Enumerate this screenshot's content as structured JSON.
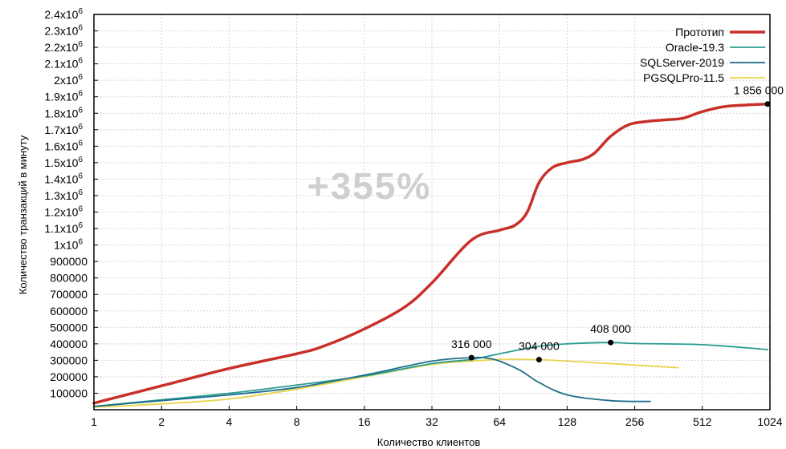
{
  "chart_data": {
    "type": "line",
    "title": "",
    "watermark": "+355%",
    "xlabel": "Количество клиентов",
    "ylabel": "Количество транзакций в минуту",
    "x_scale": "log2",
    "xlim": [
      1,
      1024
    ],
    "ylim": [
      0,
      2400000
    ],
    "grid": true,
    "legend_placement": "top-right",
    "x_ticks": [
      {
        "value": 1,
        "label": "1"
      },
      {
        "value": 2,
        "label": "2"
      },
      {
        "value": 4,
        "label": "4"
      },
      {
        "value": 8,
        "label": "8"
      },
      {
        "value": 16,
        "label": "16"
      },
      {
        "value": 32,
        "label": "32"
      },
      {
        "value": 64,
        "label": "64"
      },
      {
        "value": 128,
        "label": "128"
      },
      {
        "value": 256,
        "label": "256"
      },
      {
        "value": 512,
        "label": "512"
      },
      {
        "value": 1024,
        "label": "1024"
      }
    ],
    "y_ticks": [
      {
        "value": 100000,
        "label": "100000"
      },
      {
        "value": 200000,
        "label": "200000"
      },
      {
        "value": 300000,
        "label": "300000"
      },
      {
        "value": 400000,
        "label": "400000"
      },
      {
        "value": 500000,
        "label": "500000"
      },
      {
        "value": 600000,
        "label": "600000"
      },
      {
        "value": 700000,
        "label": "700000"
      },
      {
        "value": 800000,
        "label": "800000"
      },
      {
        "value": 900000,
        "label": "900000"
      },
      {
        "value": 1000000,
        "label": "1x10",
        "exp": "6"
      },
      {
        "value": 1100000,
        "label": "1.1x10",
        "exp": "6"
      },
      {
        "value": 1200000,
        "label": "1.2x10",
        "exp": "6"
      },
      {
        "value": 1300000,
        "label": "1.3x10",
        "exp": "6"
      },
      {
        "value": 1400000,
        "label": "1.4x10",
        "exp": "6"
      },
      {
        "value": 1500000,
        "label": "1.5x10",
        "exp": "6"
      },
      {
        "value": 1600000,
        "label": "1.6x10",
        "exp": "6"
      },
      {
        "value": 1700000,
        "label": "1.7x10",
        "exp": "6"
      },
      {
        "value": 1800000,
        "label": "1.8x10",
        "exp": "6"
      },
      {
        "value": 1900000,
        "label": "1.9x10",
        "exp": "6"
      },
      {
        "value": 2000000,
        "label": "2x10",
        "exp": "6"
      },
      {
        "value": 2100000,
        "label": "2.1x10",
        "exp": "6"
      },
      {
        "value": 2200000,
        "label": "2.2x10",
        "exp": "6"
      },
      {
        "value": 2300000,
        "label": "2.3x10",
        "exp": "6"
      },
      {
        "value": 2400000,
        "label": "2.4x10",
        "exp": "6"
      }
    ],
    "series": [
      {
        "name": "Прототип",
        "color": "#c8302a",
        "x": [
          1,
          2,
          4,
          8,
          10.5,
          16,
          24,
          32,
          48,
          64,
          75,
          85,
          96,
          110,
          128,
          150,
          170,
          200,
          240,
          290,
          350,
          420,
          512,
          640,
          800,
          1000
        ],
        "values": [
          40000,
          145000,
          250000,
          340000,
          385000,
          490000,
          620000,
          770000,
          1030000,
          1090000,
          1120000,
          1200000,
          1380000,
          1470000,
          1500000,
          1520000,
          1560000,
          1660000,
          1730000,
          1750000,
          1760000,
          1770000,
          1810000,
          1840000,
          1850000,
          1856000
        ]
      },
      {
        "name": "Oracle-19.3",
        "color": "#2a9d8f",
        "x": [
          1,
          2,
          4,
          8,
          16,
          32,
          48,
          64,
          96,
          128,
          200,
          256,
          512,
          1000
        ],
        "values": [
          20000,
          60000,
          100000,
          150000,
          205000,
          280000,
          305000,
          340000,
          385000,
          400000,
          408000,
          402000,
          395000,
          365000
        ]
      },
      {
        "name": "SQLServer-2019",
        "color": "#1f6f8b",
        "x": [
          1,
          2,
          4,
          8,
          16,
          32,
          48,
          56,
          64,
          80,
          96,
          128,
          200,
          300
        ],
        "values": [
          20000,
          55000,
          90000,
          135000,
          210000,
          295000,
          316000,
          314000,
          295000,
          235000,
          165000,
          90000,
          55000,
          50000
        ]
      },
      {
        "name": "PGSQLPro-11.5",
        "color": "#e8d44d",
        "x": [
          1,
          2,
          4,
          8,
          16,
          32,
          48,
          64,
          96,
          128,
          200,
          400
        ],
        "values": [
          15000,
          35000,
          65000,
          125000,
          200000,
          275000,
          295000,
          305000,
          304000,
          295000,
          280000,
          255000
        ]
      }
    ],
    "annotations": [
      {
        "text": "1 856 000",
        "x": 1000,
        "y": 1856000,
        "label_anchor": "end"
      },
      {
        "text": "408 000",
        "x": 200,
        "y": 408000,
        "label_anchor": "middle"
      },
      {
        "text": "316 000",
        "x": 48,
        "y": 316000,
        "label_anchor": "middle"
      },
      {
        "text": "304 000",
        "x": 96,
        "y": 304000,
        "label_anchor": "middle"
      }
    ]
  }
}
